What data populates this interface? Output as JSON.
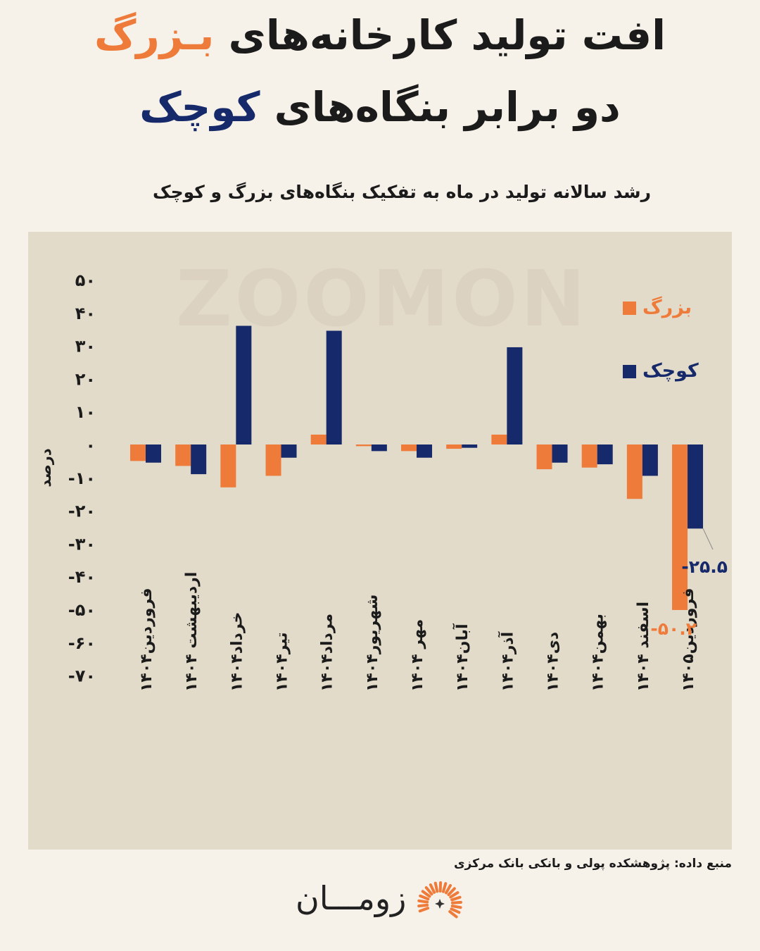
{
  "title": {
    "line1_prefix": "افت تولید کارخانه‌های",
    "line1_highlight": "بـزرگ",
    "line2_prefix": "دو برابر بنگاه‌های",
    "line2_highlight": "کوچک"
  },
  "subtitle": "رشد سالانه تولید در ماه به تفکیک بنگاه‌های بزرگ و کوچک",
  "watermark": "ZOOMON",
  "source": "منبع داده: پژوهشکده پولی و بانکی  بانک مرکزی",
  "logo": {
    "text": "زومـــان",
    "icon": "sunburst-logo-icon"
  },
  "colors": {
    "large": "#ee7b3a",
    "small": "#16296a",
    "background": "#f6f1e9",
    "panel": "#e3dbca"
  },
  "chart_data": {
    "type": "bar",
    "ylabel": "درصد",
    "ylim": [
      -70,
      50
    ],
    "yticks": [
      50,
      40,
      30,
      20,
      10,
      0,
      -10,
      -20,
      -30,
      -40,
      -50,
      -60,
      -70
    ],
    "ytick_labels": [
      "۵۰",
      "۴۰",
      "۳۰",
      "۲۰",
      "۱۰",
      "۰",
      "-۱۰",
      "-۲۰",
      "-۳۰",
      "-۴۰",
      "-۵۰",
      "-۶۰",
      "-۷۰"
    ],
    "grid": false,
    "legend_position": "top-right",
    "categories": [
      "فروردین۱۴۰۴",
      "اردیبهشت ۱۴۰۴",
      "خرداد۱۴۰۴",
      "تیر۱۴۰۴",
      "مرداد۱۴۰۴",
      "شهریور۱۴۰۴",
      "مهر ۱۴۰۴",
      "آبان۱۴۰۴",
      "آذر۱۴۰۴",
      "دی۱۴۰۴",
      "بهمن۱۴۰۴",
      "اسفند ۱۴۰۴",
      "فروردین۱۴۰۵"
    ],
    "series": [
      {
        "name": "بزرگ",
        "color": "#ee7b3a",
        "values": [
          -5,
          -6.5,
          -13,
          -9.5,
          3,
          -0.5,
          -2,
          -1.3,
          3,
          -7.5,
          -7,
          -16.5,
          -50.2
        ]
      },
      {
        "name": "کوچک",
        "color": "#16296a",
        "values": [
          -5.5,
          -9,
          36,
          -4,
          34.5,
          -2,
          -4,
          -1,
          29.5,
          -5.5,
          -6,
          -9.5,
          -25.5
        ]
      }
    ],
    "annotations": [
      {
        "series": "کوچک",
        "category": "فروردین۱۴۰۵",
        "text": "-۲۵.۵"
      },
      {
        "series": "بزرگ",
        "category": "فروردین۱۴۰۵",
        "text": "-۵۰.۲"
      }
    ]
  }
}
